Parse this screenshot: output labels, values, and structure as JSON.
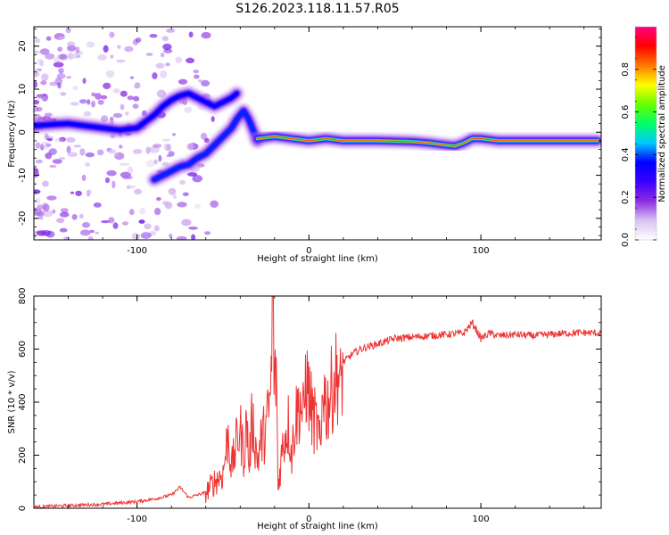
{
  "figure": {
    "title": "S126.2023.118.11.57.R05"
  },
  "chart_data": [
    {
      "type": "heatmap",
      "xlabel": "Height of straight line (km)",
      "ylabel": "Frequency (Hz)",
      "xlim": [
        -160,
        170
      ],
      "ylim": [
        -25,
        24.5
      ],
      "x_ticks": [
        -100,
        0,
        100
      ],
      "y_ticks": [
        -20,
        -10,
        0,
        10,
        20
      ],
      "colorbar": {
        "label": "Normalized spectral amplitude",
        "range": [
          0,
          1
        ],
        "ticks": [
          0.0,
          0.2,
          0.4,
          0.6,
          0.8
        ],
        "tick_labels": [
          "0.0",
          "0.2",
          "0.4",
          "0.6",
          "0.8"
        ],
        "colors": [
          "#ffffff",
          "#d8c2f0",
          "#8e2be2",
          "#3a00ff",
          "#0000ff",
          "#00c8ff",
          "#00ff66",
          "#66ff00",
          "#ffff00",
          "#ff7a00",
          "#ff0000",
          "#ff0080"
        ]
      },
      "ridges": [
        {
          "name": "main",
          "points": [
            [
              -160,
              1.5
            ],
            [
              -150,
              1.8
            ],
            [
              -140,
              2.0
            ],
            [
              -130,
              1.5
            ],
            [
              -120,
              1.0
            ],
            [
              -110,
              0.5
            ],
            [
              -100,
              1.0
            ],
            [
              -95,
              2.5
            ],
            [
              -90,
              4.0
            ],
            [
              -85,
              6.0
            ],
            [
              -80,
              7.5
            ],
            [
              -75,
              8.5
            ],
            [
              -70,
              9.0
            ],
            [
              -65,
              8.0
            ],
            [
              -60,
              7.0
            ],
            [
              -55,
              6.0
            ],
            [
              -50,
              7.0
            ],
            [
              -45,
              8.0
            ],
            [
              -42,
              9.0
            ]
          ],
          "amplitude": 0.35
        },
        {
          "name": "descending",
          "points": [
            [
              -90,
              -11
            ],
            [
              -85,
              -10
            ],
            [
              -80,
              -9
            ],
            [
              -75,
              -8
            ],
            [
              -70,
              -7.5
            ],
            [
              -65,
              -6
            ],
            [
              -60,
              -5
            ],
            [
              -55,
              -3
            ],
            [
              -50,
              -1
            ],
            [
              -45,
              1
            ],
            [
              -42,
              3
            ],
            [
              -38,
              5
            ],
            [
              -35,
              3
            ],
            [
              -32,
              0
            ],
            [
              -30,
              -2
            ]
          ],
          "amplitude": 0.38
        },
        {
          "name": "stable",
          "points": [
            [
              -30,
              -1.5
            ],
            [
              -20,
              -1.0
            ],
            [
              -10,
              -1.5
            ],
            [
              0,
              -2.0
            ],
            [
              10,
              -1.5
            ],
            [
              20,
              -2.0
            ],
            [
              40,
              -2.0
            ],
            [
              60,
              -2.2
            ],
            [
              70,
              -2.5
            ],
            [
              80,
              -3.0
            ],
            [
              85,
              -3.2
            ],
            [
              90,
              -2.5
            ],
            [
              95,
              -1.5
            ],
            [
              100,
              -1.5
            ],
            [
              110,
              -2.0
            ],
            [
              130,
              -2.0
            ],
            [
              150,
              -2.0
            ],
            [
              168,
              -2.0
            ]
          ],
          "amplitude": 0.85
        }
      ]
    },
    {
      "type": "line",
      "xlabel": "Height of straight line (km)",
      "ylabel": "SNR (10 * v/v)",
      "xlim": [
        -160,
        170
      ],
      "ylim": [
        0,
        800
      ],
      "x_ticks": [
        -100,
        0,
        100
      ],
      "y_ticks": [
        0,
        200,
        400,
        600,
        800
      ],
      "series": [
        {
          "color": "#ee3333",
          "x": [
            -160,
            -140,
            -120,
            -100,
            -90,
            -80,
            -75,
            -70,
            -60,
            -55,
            -50,
            -47,
            -45,
            -42,
            -40,
            -38,
            -36,
            -35,
            -33,
            -30,
            -28,
            -25,
            -23,
            -22,
            -21,
            -20,
            -19,
            -18,
            -15,
            -12,
            -10,
            -8,
            -5,
            -3,
            -2,
            0,
            2,
            5,
            7,
            8,
            10,
            13,
            15,
            17,
            18,
            20,
            25,
            30,
            40,
            50,
            60,
            70,
            80,
            90,
            95,
            100,
            105,
            110,
            120,
            130,
            140,
            150,
            160,
            170
          ],
          "y": [
            5,
            10,
            15,
            25,
            35,
            50,
            80,
            40,
            60,
            100,
            130,
            280,
            150,
            250,
            300,
            200,
            330,
            150,
            340,
            180,
            250,
            300,
            380,
            470,
            800,
            420,
            550,
            80,
            250,
            320,
            200,
            340,
            400,
            330,
            490,
            430,
            350,
            300,
            200,
            510,
            380,
            440,
            480,
            520,
            430,
            550,
            580,
            600,
            620,
            640,
            645,
            650,
            655,
            660,
            700,
            640,
            660,
            650,
            655,
            650,
            655,
            660,
            662,
            660
          ]
        }
      ]
    }
  ]
}
